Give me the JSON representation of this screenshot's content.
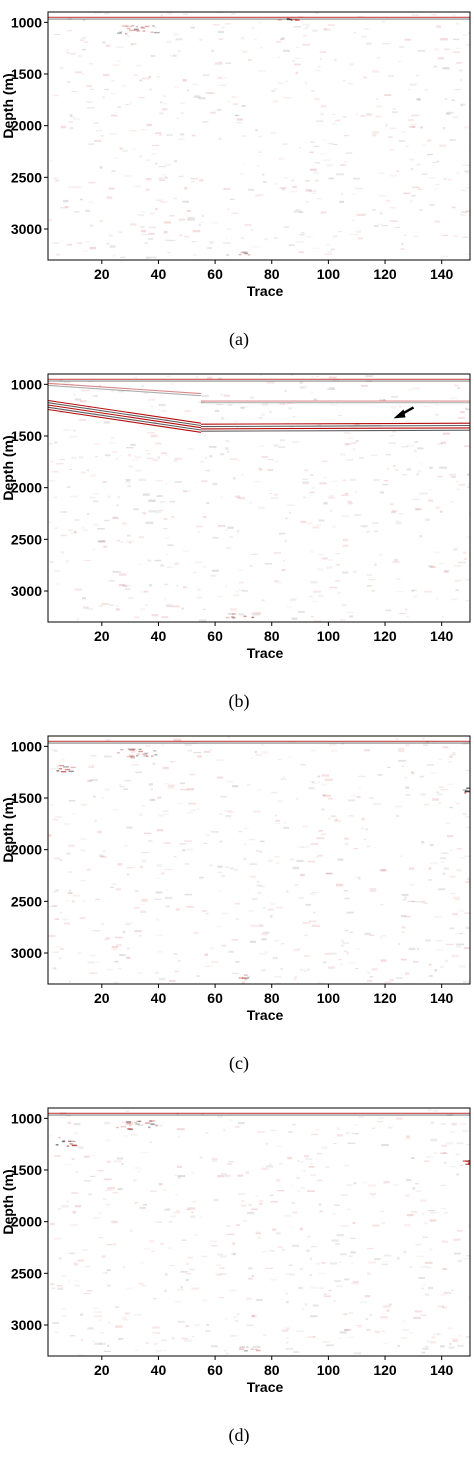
{
  "chart_data": [
    {
      "type": "heatmap",
      "panel_label": "(a)",
      "xlabel": "Trace",
      "ylabel": "Depth (m)",
      "xlim": [
        1,
        150
      ],
      "ylim": [
        3300,
        900
      ],
      "xticks": [
        20,
        40,
        60,
        80,
        100,
        120,
        140
      ],
      "yticks": [
        1000,
        1500,
        2000,
        2500,
        3000
      ],
      "colormap": [
        "#000000",
        "#ffffff",
        "#c00000"
      ],
      "events": [
        {
          "kind": "band",
          "trace_start": 1,
          "trace_end": 150,
          "depth_start": 960,
          "depth_end": 960,
          "thickness_m": 35,
          "strength": 0.75
        },
        {
          "kind": "patch",
          "trace": 32,
          "depth": 1060,
          "trace_span": 14,
          "depth_span": 90,
          "strength": 0.5
        },
        {
          "kind": "patch",
          "trace": 85,
          "depth": 965,
          "trace_span": 12,
          "depth_span": 30,
          "strength": 0.9
        },
        {
          "kind": "patch",
          "trace": 70,
          "depth": 3230,
          "trace_span": 8,
          "depth_span": 40,
          "strength": 0.4
        }
      ]
    },
    {
      "type": "heatmap",
      "panel_label": "(b)",
      "xlabel": "Trace",
      "ylabel": "Depth (m)",
      "xlim": [
        1,
        150
      ],
      "ylim": [
        3300,
        900
      ],
      "xticks": [
        20,
        40,
        60,
        80,
        100,
        120,
        140
      ],
      "yticks": [
        1000,
        1500,
        2000,
        2500,
        3000
      ],
      "colormap": [
        "#000000",
        "#ffffff",
        "#c00000"
      ],
      "events": [
        {
          "kind": "band",
          "trace_start": 1,
          "trace_end": 150,
          "depth_start": 960,
          "depth_end": 960,
          "thickness_m": 35,
          "strength": 0.7
        },
        {
          "kind": "band",
          "trace_start": 1,
          "trace_end": 55,
          "depth_start": 1000,
          "depth_end": 1100,
          "thickness_m": 40,
          "strength": 0.5
        },
        {
          "kind": "band",
          "trace_start": 1,
          "trace_end": 55,
          "depth_start": 1200,
          "depth_end": 1420,
          "thickness_m": 110,
          "strength": 1.0
        },
        {
          "kind": "band",
          "trace_start": 55,
          "trace_end": 150,
          "depth_start": 1420,
          "depth_end": 1410,
          "thickness_m": 90,
          "strength": 1.0
        },
        {
          "kind": "band",
          "trace_start": 55,
          "trace_end": 150,
          "depth_start": 1170,
          "depth_end": 1170,
          "thickness_m": 30,
          "strength": 0.45
        },
        {
          "kind": "patch",
          "trace": 68,
          "depth": 3230,
          "trace_span": 10,
          "depth_span": 50,
          "strength": 0.5
        }
      ],
      "annotations": [
        {
          "kind": "arrow",
          "trace": 123,
          "depth": 1330
        }
      ]
    },
    {
      "type": "heatmap",
      "panel_label": "(c)",
      "xlabel": "Trace",
      "ylabel": "Depth (m)",
      "xlim": [
        1,
        150
      ],
      "ylim": [
        3300,
        900
      ],
      "xticks": [
        20,
        40,
        60,
        80,
        100,
        120,
        140
      ],
      "yticks": [
        1000,
        1500,
        2000,
        2500,
        3000
      ],
      "colormap": [
        "#000000",
        "#ffffff",
        "#c00000"
      ],
      "events": [
        {
          "kind": "band",
          "trace_start": 1,
          "trace_end": 150,
          "depth_start": 960,
          "depth_end": 960,
          "thickness_m": 35,
          "strength": 0.75
        },
        {
          "kind": "patch",
          "trace": 32,
          "depth": 1060,
          "trace_span": 14,
          "depth_span": 90,
          "strength": 0.5
        },
        {
          "kind": "patch",
          "trace": 6,
          "depth": 1200,
          "trace_span": 6,
          "depth_span": 80,
          "strength": 0.7
        },
        {
          "kind": "patch",
          "trace": 148,
          "depth": 1420,
          "trace_span": 3,
          "depth_span": 50,
          "strength": 0.9
        },
        {
          "kind": "patch",
          "trace": 70,
          "depth": 3230,
          "trace_span": 9,
          "depth_span": 50,
          "strength": 0.5
        }
      ]
    },
    {
      "type": "heatmap",
      "panel_label": "(d)",
      "xlabel": "Trace",
      "ylabel": "Depth (m)",
      "xlim": [
        1,
        150
      ],
      "ylim": [
        3300,
        900
      ],
      "xticks": [
        20,
        40,
        60,
        80,
        100,
        120,
        140
      ],
      "yticks": [
        1000,
        1500,
        2000,
        2500,
        3000
      ],
      "colormap": [
        "#000000",
        "#ffffff",
        "#c00000"
      ],
      "events": [
        {
          "kind": "band",
          "trace_start": 1,
          "trace_end": 150,
          "depth_start": 960,
          "depth_end": 960,
          "thickness_m": 35,
          "strength": 0.75
        },
        {
          "kind": "patch",
          "trace": 32,
          "depth": 1060,
          "trace_span": 14,
          "depth_span": 90,
          "strength": 0.5
        },
        {
          "kind": "patch",
          "trace": 6,
          "depth": 1220,
          "trace_span": 7,
          "depth_span": 90,
          "strength": 0.75
        },
        {
          "kind": "patch",
          "trace": 148,
          "depth": 1420,
          "trace_span": 3,
          "depth_span": 50,
          "strength": 0.9
        },
        {
          "kind": "patch",
          "trace": 70,
          "depth": 3230,
          "trace_span": 9,
          "depth_span": 50,
          "strength": 0.5
        }
      ]
    }
  ]
}
